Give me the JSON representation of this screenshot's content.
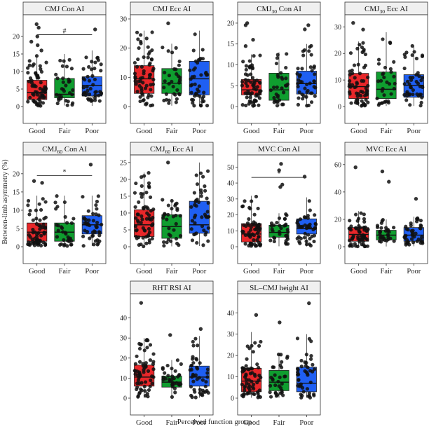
{
  "figure": {
    "ylabel": "Between-limb asymmetry (%)",
    "xlabel": "Perceived function group"
  },
  "colors": {
    "Good": "#e8272a",
    "Fair": "#0f9d2f",
    "Poor": "#1f5ff2",
    "point": "#111111",
    "strip": "#f0f0f0"
  },
  "chart_data": [
    {
      "type": "box",
      "title": "CMJ Con AI",
      "categories": [
        "Good",
        "Fair",
        "Poor"
      ],
      "ylim": [
        0,
        25
      ],
      "yticks": [
        0,
        5,
        10,
        15,
        20
      ],
      "boxes": [
        {
          "group": "Good",
          "min": 0,
          "q1": 2,
          "median": 4,
          "q3": 7.5,
          "max": 14.5
        },
        {
          "group": "Fair",
          "min": 0.3,
          "q1": 2.5,
          "median": 3.5,
          "q3": 8,
          "max": 15
        },
        {
          "group": "Poor",
          "min": 0.2,
          "q1": 3,
          "median": 6,
          "q3": 8.5,
          "max": 16
        }
      ],
      "outliers": [
        [
          0,
          23.5
        ],
        [
          0,
          22.5
        ],
        [
          0,
          20
        ],
        [
          0,
          18.5
        ],
        [
          0,
          17.5
        ],
        [
          0,
          16
        ],
        [
          2,
          22
        ]
      ],
      "significance": {
        "from": "Good",
        "to": "Poor",
        "y": 20.5,
        "label": "#"
      }
    },
    {
      "type": "box",
      "title": "CMJ Ecc AI",
      "categories": [
        "Good",
        "Fair",
        "Poor"
      ],
      "ylim": [
        0,
        30
      ],
      "yticks": [
        0,
        10,
        20,
        30
      ],
      "boxes": [
        {
          "group": "Good",
          "min": 0.3,
          "q1": 4.5,
          "median": 9.5,
          "q3": 14,
          "max": 26
        },
        {
          "group": "Fair",
          "min": 0.3,
          "q1": 4.5,
          "median": 8,
          "q3": 13,
          "max": 21.5
        },
        {
          "group": "Poor",
          "min": 0.2,
          "q1": 4,
          "median": 9.5,
          "q3": 15.5,
          "max": 26
        }
      ],
      "outliers": [
        [
          1,
          28.5
        ]
      ],
      "significance": null
    },
    {
      "type": "box",
      "title": "CMJ30 Con AI",
      "title_main": "CMJ",
      "title_sub": "30",
      "title_rest": " Con AI",
      "categories": [
        "Good",
        "Fair",
        "Poor"
      ],
      "ylim": [
        0,
        21
      ],
      "yticks": [
        0,
        5,
        10,
        15,
        20
      ],
      "boxes": [
        {
          "group": "Good",
          "min": 0.1,
          "q1": 2.8,
          "median": 4,
          "q3": 6.5,
          "max": 12.5
        },
        {
          "group": "Fair",
          "min": 0.1,
          "q1": 1.5,
          "median": 4,
          "q3": 8,
          "max": 13
        },
        {
          "group": "Poor",
          "min": 0.2,
          "q1": 3,
          "median": 5.5,
          "q3": 8.5,
          "max": 15
        }
      ],
      "outliers": [
        [
          0,
          20
        ],
        [
          0,
          19.5
        ],
        [
          0,
          16
        ],
        [
          0,
          14.5
        ],
        [
          2,
          19.5
        ],
        [
          2,
          18.5
        ]
      ],
      "significance": null
    },
    {
      "type": "box",
      "title": "CMJ30 Ecc AI",
      "title_main": "CMJ",
      "title_sub": "30",
      "title_rest": " Ecc AI",
      "categories": [
        "Good",
        "Fair",
        "Poor"
      ],
      "ylim": [
        0,
        33
      ],
      "yticks": [
        0,
        10,
        20,
        30
      ],
      "boxes": [
        {
          "group": "Good",
          "min": 0.2,
          "q1": 3,
          "median": 7.5,
          "q3": 12.5,
          "max": 24.5
        },
        {
          "group": "Fair",
          "min": 0.2,
          "q1": 3,
          "median": 6.5,
          "q3": 13,
          "max": 28
        },
        {
          "group": "Poor",
          "min": 0.2,
          "q1": 3.5,
          "median": 8,
          "q3": 12,
          "max": 23
        }
      ],
      "outliers": [
        [
          0,
          31.5
        ],
        [
          0,
          29
        ]
      ],
      "significance": null
    },
    {
      "type": "box",
      "title": "CMJ60 Con AI",
      "title_main": "CMJ",
      "title_sub": "60",
      "title_rest": " Con AI",
      "categories": [
        "Good",
        "Fair",
        "Poor"
      ],
      "ylim": [
        0,
        24
      ],
      "yticks": [
        0,
        5,
        10,
        15,
        20
      ],
      "boxes": [
        {
          "group": "Good",
          "min": 0.1,
          "q1": 1.5,
          "median": 4,
          "q3": 6.5,
          "max": 14
        },
        {
          "group": "Fair",
          "min": 0.1,
          "q1": 1.5,
          "median": 4,
          "q3": 6.5,
          "max": 14
        },
        {
          "group": "Poor",
          "min": 0.2,
          "q1": 3.5,
          "median": 6,
          "q3": 8.5,
          "max": 14
        }
      ],
      "outliers": [
        [
          0,
          18
        ],
        [
          0,
          17.5
        ],
        [
          2,
          22.5
        ]
      ],
      "significance": {
        "from": "Good",
        "to": "Poor",
        "y": 19.5,
        "label": "*"
      }
    },
    {
      "type": "box",
      "title": "CMJ60 Ecc AI",
      "title_main": "CMJ",
      "title_sub": "60",
      "title_rest": " Ecc AI",
      "categories": [
        "Good",
        "Fair",
        "Poor"
      ],
      "ylim": [
        0,
        26
      ],
      "yticks": [
        0,
        5,
        10,
        15,
        20,
        25
      ],
      "boxes": [
        {
          "group": "Good",
          "min": 0.1,
          "q1": 3,
          "median": 6.5,
          "q3": 11,
          "max": 22
        },
        {
          "group": "Fair",
          "min": 0.1,
          "q1": 2.5,
          "median": 6,
          "q3": 9.5,
          "max": 14
        },
        {
          "group": "Poor",
          "min": 0.2,
          "q1": 4,
          "median": 6.5,
          "q3": 13.5,
          "max": 25
        }
      ],
      "outliers": [
        [
          1,
          25
        ]
      ],
      "significance": null
    },
    {
      "type": "box",
      "title": "MVC Con AI",
      "categories": [
        "Good",
        "Fair",
        "Poor"
      ],
      "ylim": [
        0,
        55
      ],
      "yticks": [
        0,
        10,
        20,
        30,
        40,
        50
      ],
      "boxes": [
        {
          "group": "Good",
          "min": 0.2,
          "q1": 3,
          "median": 8,
          "q3": 14.5,
          "max": 32
        },
        {
          "group": "Fair",
          "min": 0.3,
          "q1": 6,
          "median": 9,
          "q3": 13.5,
          "max": 21
        },
        {
          "group": "Poor",
          "min": 0.2,
          "q1": 8,
          "median": 11.5,
          "q3": 17.5,
          "max": 31
        }
      ],
      "outliers": [
        [
          1,
          52
        ],
        [
          1,
          48
        ],
        [
          1,
          39
        ],
        [
          1,
          37.5
        ],
        [
          2,
          44
        ]
      ],
      "significance": {
        "from": "Good",
        "to": "Poor",
        "y": 43.5,
        "label": "*"
      }
    },
    {
      "type": "box",
      "title": "MVC Ecc AI",
      "categories": [
        "Good",
        "Fair",
        "Poor"
      ],
      "ylim": [
        0,
        64
      ],
      "yticks": [
        0,
        20,
        40,
        60
      ],
      "boxes": [
        {
          "group": "Good",
          "min": 0.2,
          "q1": 4,
          "median": 9,
          "q3": 14,
          "max": 26
        },
        {
          "group": "Fair",
          "min": 0.2,
          "q1": 5,
          "median": 8.5,
          "q3": 12,
          "max": 20
        },
        {
          "group": "Poor",
          "min": 0.3,
          "q1": 4,
          "median": 8.5,
          "q3": 14,
          "max": 22
        }
      ],
      "outliers": [
        [
          0,
          58
        ],
        [
          1,
          55
        ],
        [
          1,
          47.5
        ],
        [
          2,
          35
        ]
      ],
      "significance": null
    },
    {
      "type": "box",
      "title": "RHT RSI AI",
      "categories": [
        "Good",
        "Fair",
        "Poor"
      ],
      "ylim": [
        0,
        50
      ],
      "yticks": [
        0,
        10,
        20,
        30,
        40
      ],
      "boxes": [
        {
          "group": "Good",
          "min": 0.2,
          "q1": 6,
          "median": 10.5,
          "q3": 16.5,
          "max": 30
        },
        {
          "group": "Fair",
          "min": 0.3,
          "q1": 5.5,
          "median": 8,
          "q3": 11,
          "max": 19
        },
        {
          "group": "Poor",
          "min": 0.2,
          "q1": 6,
          "median": 10.5,
          "q3": 16,
          "max": 31
        }
      ],
      "outliers": [
        [
          0,
          47.5
        ],
        [
          1,
          31.5
        ],
        [
          2,
          34.5
        ]
      ],
      "significance": null
    },
    {
      "type": "box",
      "title": "SL–CMJ height AI",
      "categories": [
        "Good",
        "Fair",
        "Poor"
      ],
      "ylim": [
        0,
        47
      ],
      "yticks": [
        0,
        10,
        20,
        30,
        40
      ],
      "boxes": [
        {
          "group": "Good",
          "min": 0.2,
          "q1": 3,
          "median": 8,
          "q3": 14,
          "max": 31
        },
        {
          "group": "Fair",
          "min": 0.2,
          "q1": 3.5,
          "median": 7.5,
          "q3": 13,
          "max": 21
        },
        {
          "group": "Poor",
          "min": 0.2,
          "q1": 3,
          "median": 7,
          "q3": 14.5,
          "max": 30
        }
      ],
      "outliers": [
        [
          0,
          39
        ],
        [
          1,
          35.5
        ],
        [
          2,
          44.5
        ]
      ],
      "significance": null
    }
  ]
}
